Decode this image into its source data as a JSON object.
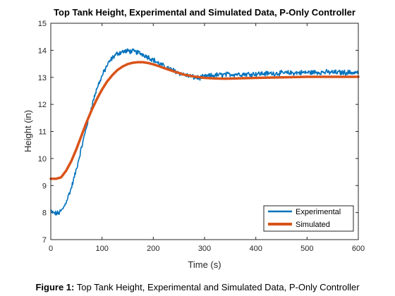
{
  "caption": {
    "label": "Figure 1:",
    "text": "Top Tank Height, Experimental and Simulated Data, P-Only Controller"
  },
  "chart_data": {
    "type": "line",
    "title": "Top Tank Height, Experimental and Simulated Data, P-Only Controller",
    "xlabel": "Time (s)",
    "ylabel": "Height (in)",
    "xlim": [
      0,
      600
    ],
    "ylim": [
      7,
      15
    ],
    "xticks": [
      0,
      100,
      200,
      300,
      400,
      500,
      600
    ],
    "yticks": [
      7,
      8,
      9,
      10,
      11,
      12,
      13,
      14,
      15
    ],
    "grid": false,
    "legend_position": "bottom-right",
    "series": [
      {
        "name": "Experimental",
        "color": "#0072BD",
        "noisy": true,
        "x": [
          0,
          5,
          10,
          15,
          20,
          25,
          30,
          40,
          50,
          60,
          70,
          80,
          90,
          100,
          110,
          120,
          130,
          140,
          150,
          160,
          170,
          180,
          190,
          200,
          210,
          220,
          230,
          240,
          250,
          260,
          270,
          280,
          290,
          300,
          320,
          340,
          360,
          380,
          400,
          420,
          440,
          460,
          480,
          500,
          520,
          540,
          560,
          580,
          600
        ],
        "y": [
          8.05,
          7.98,
          7.97,
          7.98,
          8.05,
          8.18,
          8.4,
          8.9,
          9.6,
          10.4,
          11.2,
          11.95,
          12.6,
          13.05,
          13.45,
          13.72,
          13.88,
          13.95,
          13.97,
          13.96,
          13.92,
          13.85,
          13.75,
          13.65,
          13.52,
          13.42,
          13.33,
          13.25,
          13.17,
          13.1,
          13.05,
          13.0,
          12.98,
          13.02,
          13.08,
          13.1,
          13.12,
          13.12,
          13.13,
          13.14,
          13.15,
          13.16,
          13.17,
          13.18,
          13.19,
          13.19,
          13.18,
          13.18,
          13.18
        ]
      },
      {
        "name": "Simulated",
        "color": "#D95319",
        "noisy": false,
        "x": [
          0,
          10,
          20,
          30,
          40,
          50,
          60,
          70,
          80,
          90,
          100,
          110,
          120,
          130,
          140,
          150,
          160,
          170,
          180,
          190,
          200,
          210,
          220,
          240,
          260,
          280,
          300,
          320,
          340,
          360,
          400,
          450,
          500,
          550,
          600
        ],
        "y": [
          9.25,
          9.25,
          9.3,
          9.55,
          9.9,
          10.35,
          10.85,
          11.35,
          11.8,
          12.2,
          12.55,
          12.85,
          13.08,
          13.27,
          13.4,
          13.49,
          13.54,
          13.56,
          13.56,
          13.53,
          13.48,
          13.42,
          13.35,
          13.22,
          13.1,
          13.03,
          12.98,
          12.96,
          12.95,
          12.96,
          12.98,
          13.0,
          13.02,
          13.02,
          13.02
        ]
      }
    ]
  }
}
